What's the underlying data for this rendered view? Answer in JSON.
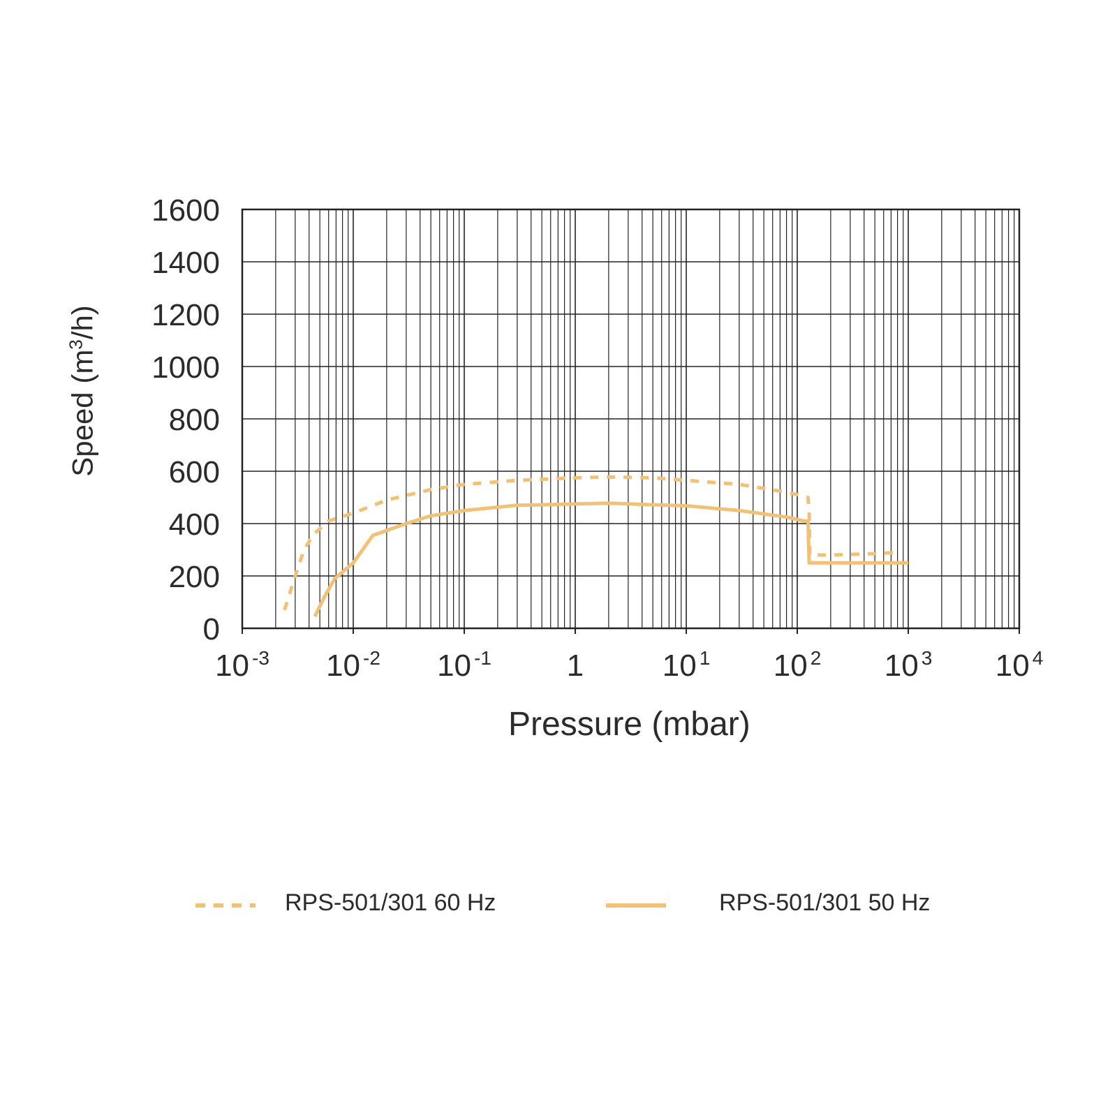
{
  "colors": {
    "series": "#f0c177",
    "grid": "#222222",
    "text": "#2b2b2b"
  },
  "chart_data": {
    "type": "line",
    "title": "",
    "xlabel": "Pressure (mbar)",
    "ylabel": {
      "prefix": "Speed (m",
      "sup": "3",
      "suffix": "/h)"
    },
    "xscale": "log",
    "xlim": [
      0.001,
      10000
    ],
    "ylim": [
      0,
      1600
    ],
    "grid": true,
    "legend_position": "bottom",
    "y_ticks": [
      "0",
      "200",
      "400",
      "600",
      "800",
      "1000",
      "1200",
      "1400",
      "1600"
    ],
    "x_ticks": [
      {
        "base": "10",
        "exp": "-3"
      },
      {
        "base": "10",
        "exp": "-2"
      },
      {
        "base": "10",
        "exp": "-1"
      },
      {
        "base": "1",
        "exp": ""
      },
      {
        "base": "10",
        "exp": "1"
      },
      {
        "base": "10",
        "exp": "2"
      },
      {
        "base": "10",
        "exp": "3"
      },
      {
        "base": "10",
        "exp": "4"
      }
    ],
    "series": [
      {
        "name": "RPS-501/301 60 Hz",
        "style": "dashed",
        "points": [
          [
            0.0024,
            70
          ],
          [
            0.003,
            200
          ],
          [
            0.0036,
            300
          ],
          [
            0.0044,
            360
          ],
          [
            0.006,
            410
          ],
          [
            0.01,
            440
          ],
          [
            0.02,
            490
          ],
          [
            0.05,
            530
          ],
          [
            0.1,
            550
          ],
          [
            0.3,
            565
          ],
          [
            1,
            575
          ],
          [
            2,
            578
          ],
          [
            5,
            575
          ],
          [
            10,
            565
          ],
          [
            30,
            550
          ],
          [
            80,
            520
          ],
          [
            115,
            505
          ],
          [
            125,
            500
          ],
          [
            128,
            450
          ],
          [
            130,
            280
          ],
          [
            200,
            280
          ],
          [
            500,
            285
          ],
          [
            800,
            290
          ]
        ]
      },
      {
        "name": "RPS-501/301 50 Hz",
        "style": "solid",
        "points": [
          [
            0.0045,
            45
          ],
          [
            0.0055,
            120
          ],
          [
            0.0068,
            190
          ],
          [
            0.01,
            250
          ],
          [
            0.015,
            355
          ],
          [
            0.03,
            400
          ],
          [
            0.05,
            430
          ],
          [
            0.1,
            450
          ],
          [
            0.3,
            470
          ],
          [
            1,
            475
          ],
          [
            2,
            478
          ],
          [
            5,
            472
          ],
          [
            10,
            468
          ],
          [
            30,
            450
          ],
          [
            80,
            425
          ],
          [
            115,
            410
          ],
          [
            125,
            410
          ],
          [
            128,
            250
          ],
          [
            300,
            250
          ],
          [
            1000,
            250
          ]
        ]
      }
    ]
  }
}
